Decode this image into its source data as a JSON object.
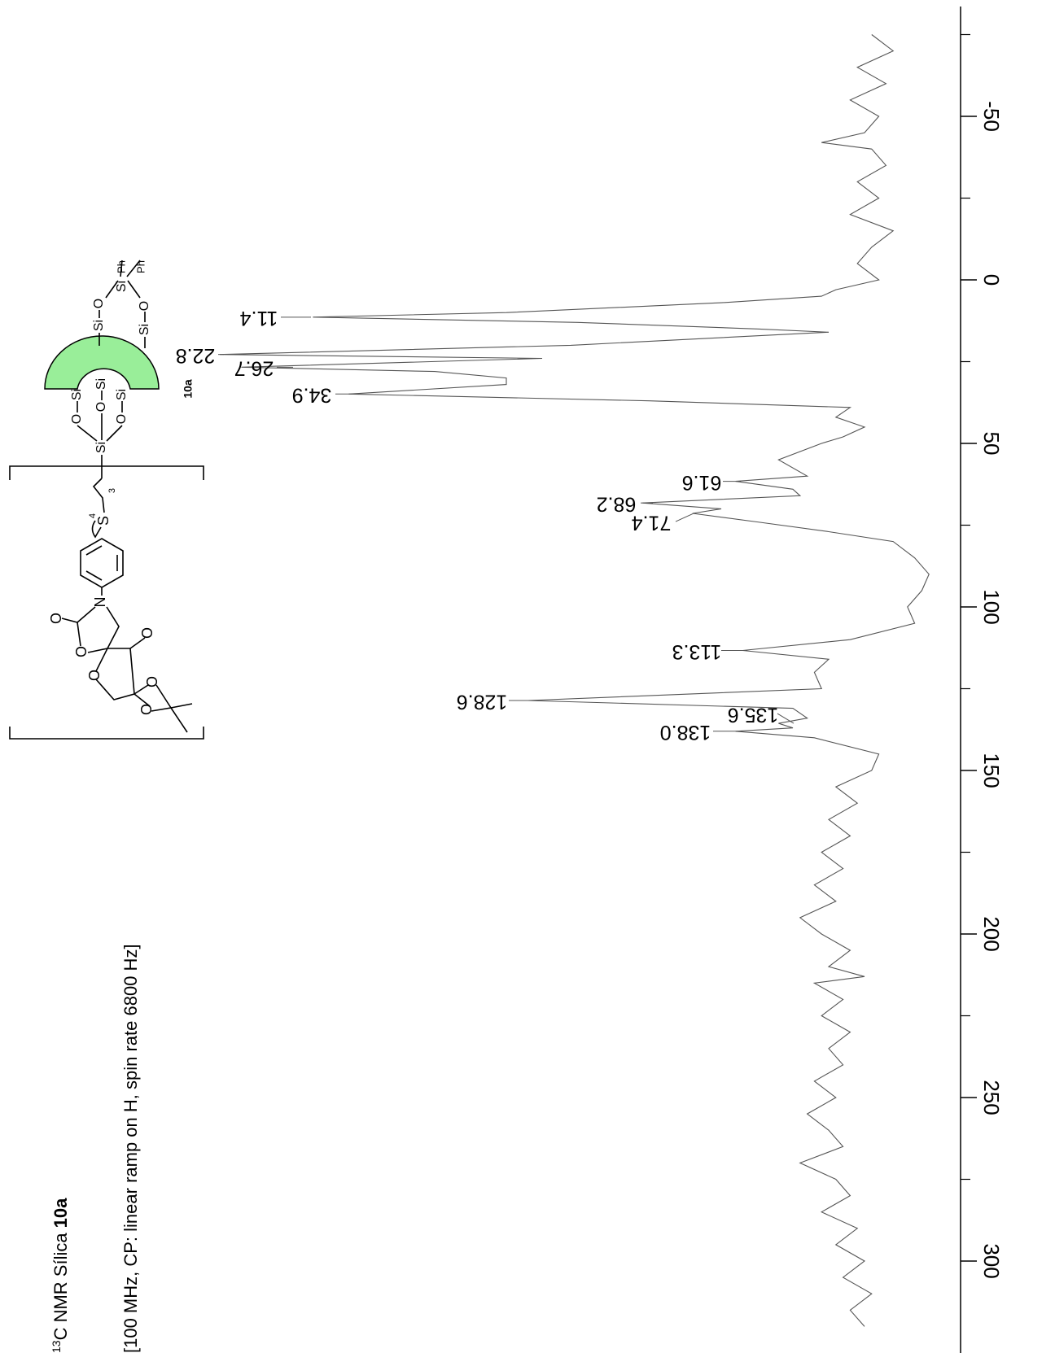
{
  "chart_data": {
    "type": "line",
    "title": {
      "isotope": "13",
      "text": "C NMR Sílica",
      "compound": "10a"
    },
    "subtitle": "[100 MHz, CP: linear ramp on H, spin rate 6800 Hz]",
    "color": "#555555",
    "xlim": [
      -80.5,
      327
    ],
    "xticks": [
      -50,
      0,
      50,
      100,
      150,
      200,
      250,
      300
    ],
    "xticks_minor": [
      -75,
      -25,
      25,
      75,
      125,
      175,
      225,
      275
    ],
    "x": [
      -75,
      -70,
      -65,
      -60,
      -55,
      -50,
      -45,
      -42,
      -40,
      -35,
      -30,
      -25,
      -20,
      -15,
      -10,
      -5,
      0,
      3,
      5,
      7,
      10,
      11.4,
      13,
      15,
      16,
      20,
      22.8,
      24,
      26.7,
      28,
      30,
      32,
      34.9,
      37,
      39,
      42,
      45,
      48,
      50,
      55,
      60,
      61.6,
      64,
      66,
      68.2,
      70,
      71.4,
      74,
      77,
      80,
      85,
      90,
      95,
      100,
      105,
      110,
      113.3,
      116,
      120,
      125,
      128.6,
      131,
      134,
      135.6,
      137,
      138.0,
      140,
      145,
      150,
      155,
      160,
      165,
      170,
      175,
      180,
      185,
      190,
      195,
      200,
      205,
      210,
      213,
      215,
      220,
      225,
      230,
      235,
      240,
      245,
      250,
      255,
      260,
      265,
      270,
      275,
      280,
      285,
      290,
      295,
      300,
      305,
      310,
      315,
      320
    ],
    "values": [
      9,
      6,
      11,
      7,
      12,
      8,
      10,
      16,
      9,
      7,
      11,
      8,
      12,
      6,
      9,
      11,
      8,
      14,
      16,
      30,
      60,
      87,
      50,
      25,
      15,
      51,
      100,
      55,
      97,
      70,
      60,
      60,
      82,
      40,
      12,
      14,
      10,
      13,
      16,
      22,
      18,
      28,
      20,
      19,
      41,
      30,
      34,
      25,
      15,
      6,
      3,
      1,
      2,
      4,
      3,
      12,
      27,
      15,
      17,
      16,
      57,
      20,
      18,
      22,
      20,
      28,
      17,
      8,
      9,
      14,
      11,
      15,
      12,
      16,
      13,
      17,
      14,
      19,
      16,
      12,
      15,
      10,
      17,
      13,
      16,
      12,
      15,
      13,
      17,
      14,
      18,
      15,
      13,
      19,
      14,
      12,
      16,
      11,
      14,
      10,
      13,
      9,
      12,
      10
    ],
    "peaks": [
      {
        "value": 11.4,
        "label": "11.4"
      },
      {
        "value": 22.8,
        "label": "22.8"
      },
      {
        "value": 26.7,
        "label": "26.7"
      },
      {
        "value": 34.9,
        "label": "34.9"
      },
      {
        "value": 61.6,
        "label": "61.6"
      },
      {
        "value": 68.2,
        "label": "68.2"
      },
      {
        "value": 71.4,
        "label": "71.4"
      },
      {
        "value": 113.3,
        "label": "113.3"
      },
      {
        "value": 128.6,
        "label": "128.6"
      },
      {
        "value": 135.6,
        "label": "135.6"
      },
      {
        "value": 138.0,
        "label": "138.0"
      }
    ]
  },
  "structure": {
    "label": "10a",
    "atoms": [
      {
        "text": "Ph",
        "color": "#000000"
      },
      {
        "text": "Ph",
        "color": "#000000"
      },
      {
        "text": "Si",
        "color": "#000000"
      },
      {
        "text": "O",
        "color": "#0000cc"
      },
      {
        "text": "O",
        "color": "#0000cc"
      },
      {
        "text": "Si",
        "color": "#0000cc"
      },
      {
        "text": "Si",
        "color": "#0000cc"
      },
      {
        "text": "Si",
        "color": "#22dd22"
      },
      {
        "text": "Si",
        "color": "#22dd22"
      },
      {
        "text": "Si",
        "color": "#22dd22"
      },
      {
        "text": "O",
        "color": "#22dd22"
      },
      {
        "text": "O",
        "color": "#22dd22"
      },
      {
        "text": "O",
        "color": "#22dd22"
      },
      {
        "text": "Si",
        "color": "#000000"
      },
      {
        "text": "3",
        "color": "#000000"
      },
      {
        "text": "S",
        "color": "#000000"
      },
      {
        "text": "4",
        "color": "#000000"
      },
      {
        "text": "N",
        "color": "#000000"
      },
      {
        "text": "O",
        "color": "#000000"
      },
      {
        "text": "O",
        "color": "#000000"
      },
      {
        "text": "O",
        "color": "#000000"
      },
      {
        "text": "O",
        "color": "#000000"
      },
      {
        "text": "O",
        "color": "#000000"
      },
      {
        "text": "O",
        "color": "#000000"
      }
    ]
  }
}
